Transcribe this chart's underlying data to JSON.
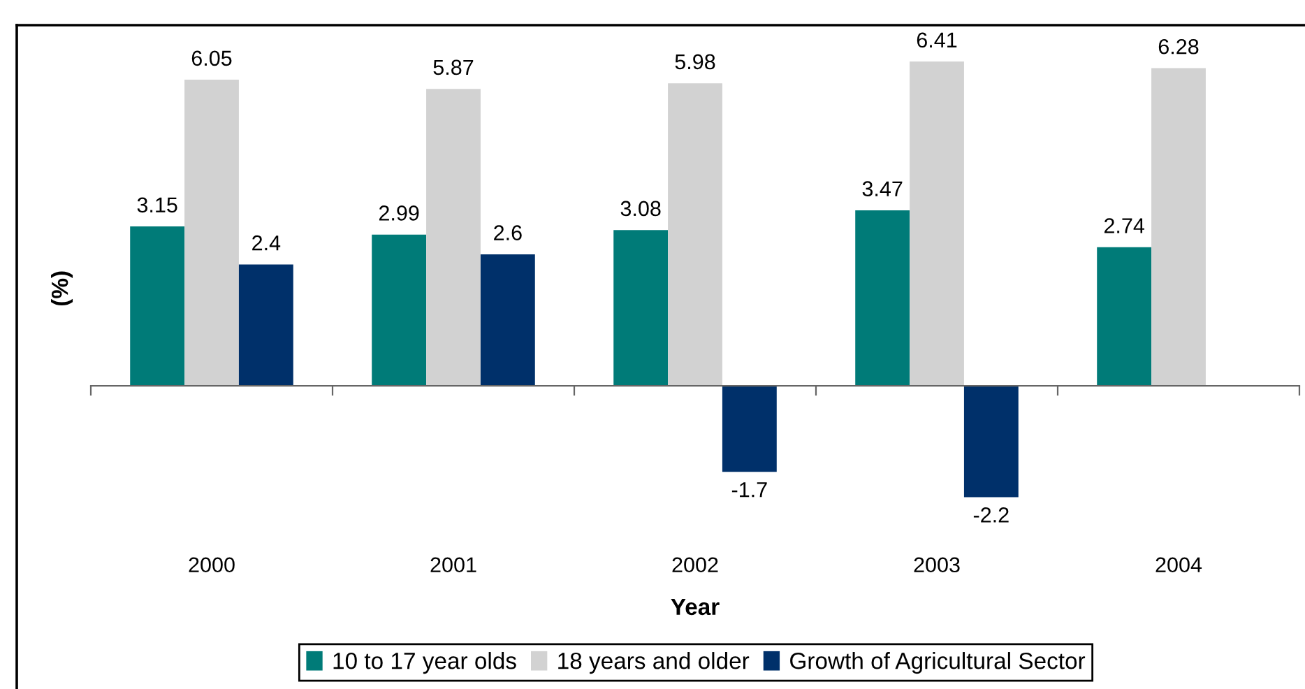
{
  "chart_data": {
    "type": "bar",
    "xlabel": "Year",
    "ylabel": "(%)",
    "categories": [
      "2000",
      "2001",
      "2002",
      "2003",
      "2004"
    ],
    "series": [
      {
        "name": "10 to 17 year olds",
        "color": "#007b78",
        "values": [
          3.15,
          2.99,
          3.08,
          3.47,
          2.74
        ]
      },
      {
        "name": "18 years and older",
        "color": "#d2d2d2",
        "values": [
          6.05,
          5.87,
          5.98,
          6.41,
          6.28
        ]
      },
      {
        "name": "Growth of Agricultural Sector",
        "color": "#00306a",
        "values": [
          2.4,
          2.6,
          -1.7,
          -2.2,
          null
        ]
      }
    ],
    "data_labels": true,
    "legend": "bottom",
    "tick_labels": "x"
  }
}
